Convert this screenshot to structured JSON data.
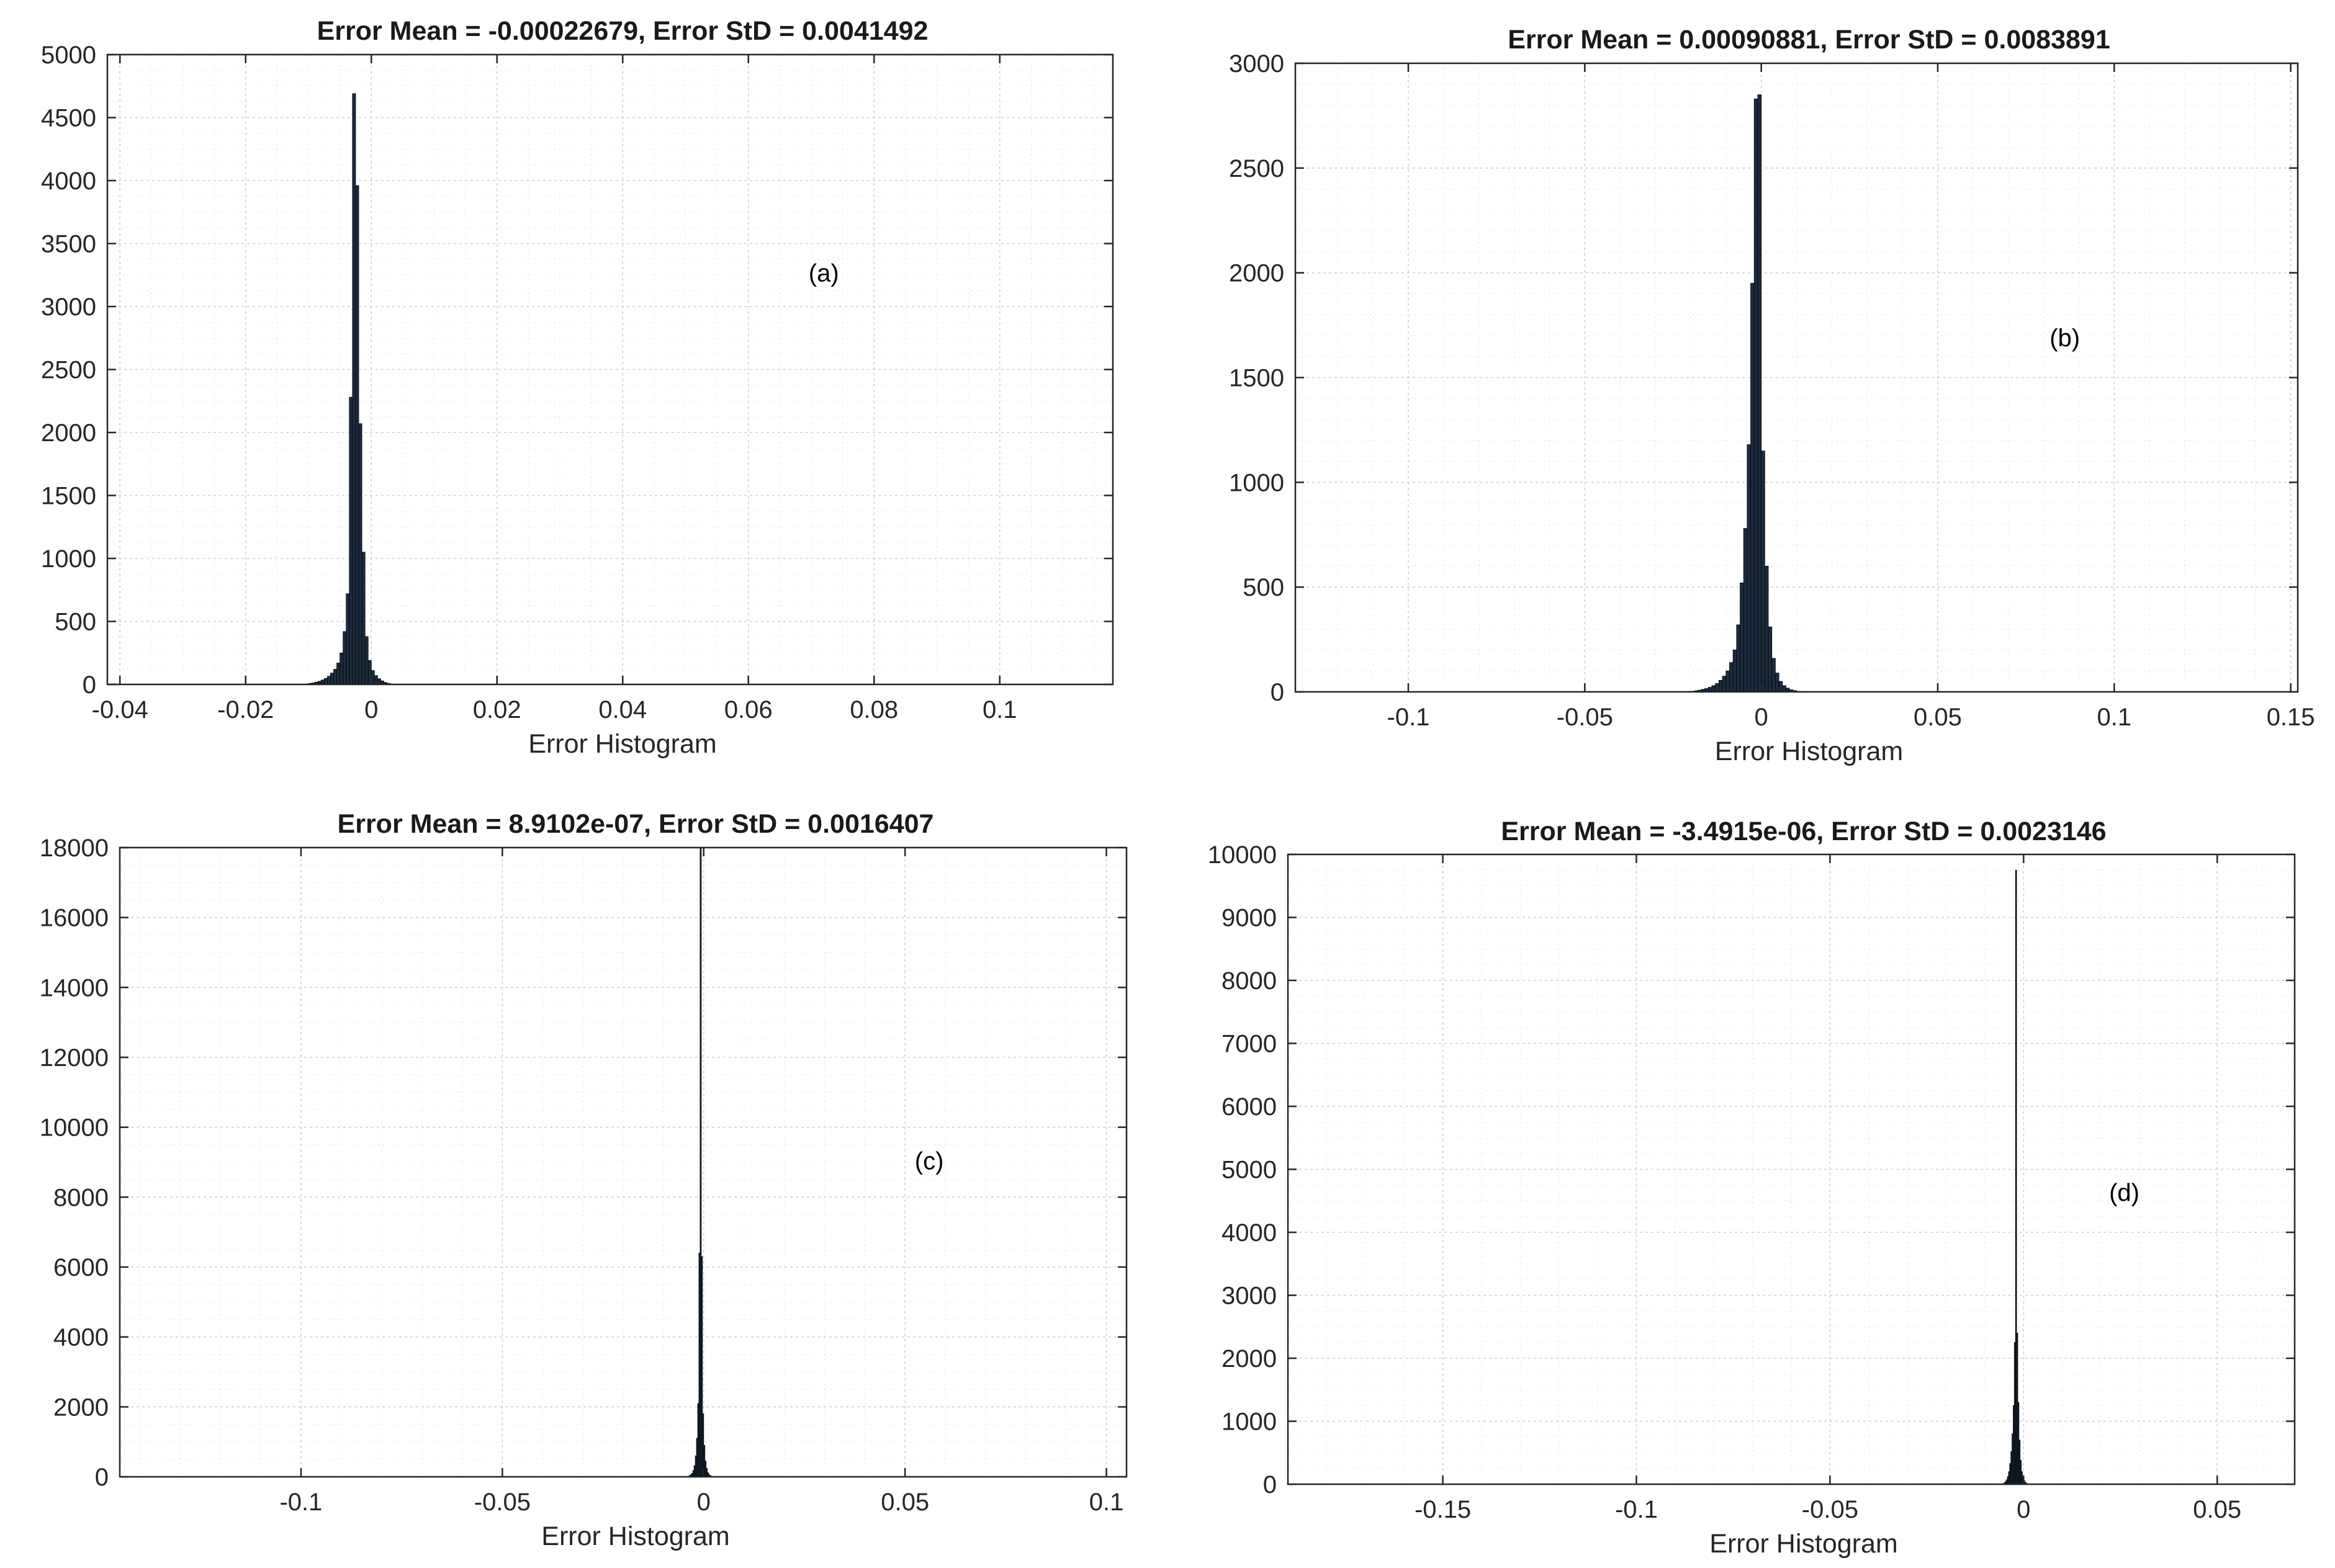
{
  "chart_data": [
    {
      "type": "bar",
      "panel": "a",
      "title": "Error Mean = -0.00022679, Error StD = 0.0041492",
      "xlabel": "Error Histogram",
      "ylabel": "",
      "annotation": "(a)",
      "annotation_at": [
        0.072,
        3200
      ],
      "xlim": [
        -0.042,
        0.118
      ],
      "ylim": [
        0,
        5000
      ],
      "xticks": [
        -0.04,
        -0.02,
        0,
        0.02,
        0.04,
        0.06,
        0.08,
        0.1
      ],
      "xtick_labels": [
        "-0.04",
        "-0.02",
        "0",
        "0.02",
        "0.04",
        "0.06",
        "0.08",
        "0.1"
      ],
      "yticks": [
        0,
        500,
        1000,
        1500,
        2000,
        2500,
        3000,
        3500,
        4000,
        4500,
        5000
      ],
      "ytick_labels": [
        "0",
        "500",
        "1000",
        "1500",
        "2000",
        "2500",
        "3000",
        "3500",
        "4000",
        "4500",
        "5000"
      ],
      "x_minor_step": 0.005,
      "y_minor_step": 125,
      "bin_width": 0.0005,
      "bin_start": -0.0115,
      "counts": [
        2,
        3,
        5,
        8,
        12,
        18,
        25,
        35,
        48,
        65,
        90,
        120,
        170,
        250,
        420,
        720,
        2280,
        4690,
        3960,
        2070,
        1050,
        380,
        190,
        110,
        70,
        45,
        28,
        15,
        8,
        4,
        2,
        1
      ]
    },
    {
      "type": "bar",
      "panel": "b",
      "title": "Error Mean = 0.00090881, Error StD = 0.0083891",
      "xlabel": "Error Histogram",
      "ylabel": "",
      "annotation": "(b)",
      "annotation_at": [
        0.086,
        1650
      ],
      "xlim": [
        -0.132,
        0.152
      ],
      "ylim": [
        0,
        3000
      ],
      "xticks": [
        -0.1,
        -0.05,
        0,
        0.05,
        0.1,
        0.15
      ],
      "xtick_labels": [
        "-0.1",
        "-0.05",
        "0",
        "0.05",
        "0.1",
        "0.15"
      ],
      "yticks": [
        0,
        500,
        1000,
        1500,
        2000,
        2500,
        3000
      ],
      "ytick_labels": [
        "0",
        "500",
        "1000",
        "1500",
        "2000",
        "2500",
        "3000"
      ],
      "x_minor_step": 0.01,
      "y_minor_step": 100,
      "bin_width": 0.001,
      "bin_start": -0.021,
      "counts": [
        2,
        3,
        5,
        8,
        12,
        16,
        22,
        30,
        40,
        55,
        75,
        100,
        140,
        200,
        320,
        520,
        780,
        1180,
        1950,
        2830,
        2850,
        1150,
        600,
        310,
        160,
        90,
        50,
        30,
        18,
        10,
        6,
        3,
        2,
        1,
        1
      ]
    },
    {
      "type": "bar",
      "panel": "c",
      "title": "Error Mean = 8.9102e-07, Error StD = 0.0016407",
      "xlabel": "Error Histogram",
      "ylabel": "",
      "annotation": "(c)",
      "annotation_at": [
        0.056,
        8800
      ],
      "xlim": [
        -0.145,
        0.105
      ],
      "ylim": [
        0,
        18000
      ],
      "xticks": [
        -0.1,
        -0.05,
        0,
        0.05,
        0.1
      ],
      "xtick_labels": [
        "-0.1",
        "-0.05",
        "0",
        "0.05",
        "0.1"
      ],
      "yticks": [
        0,
        2000,
        4000,
        6000,
        8000,
        10000,
        12000,
        14000,
        16000,
        18000
      ],
      "ytick_labels": [
        "0",
        "2000",
        "4000",
        "6000",
        "8000",
        "10000",
        "12000",
        "14000",
        "16000",
        "18000"
      ],
      "x_minor_step": 0.01,
      "y_minor_step": 500,
      "bin_width": 0.0003,
      "bin_start": -0.0045,
      "counts": [
        5,
        10,
        20,
        35,
        60,
        100,
        180,
        320,
        600,
        1100,
        2100,
        6400,
        18000,
        6300,
        1800,
        900,
        450,
        240,
        120,
        60,
        30,
        15,
        8,
        4,
        2,
        1
      ]
    },
    {
      "type": "bar",
      "panel": "d",
      "title": "Error Mean = -3.4915e-06, Error StD = 0.0023146",
      "xlabel": "Error Histogram",
      "ylabel": "",
      "annotation": "(d)",
      "annotation_at": [
        0.026,
        4500
      ],
      "xlim": [
        -0.19,
        0.07
      ],
      "ylim": [
        0,
        10000
      ],
      "xticks": [
        -0.15,
        -0.1,
        -0.05,
        0,
        0.05
      ],
      "xtick_labels": [
        "-0.15",
        "-0.1",
        "-0.05",
        "0",
        "0.05"
      ],
      "yticks": [
        0,
        1000,
        2000,
        3000,
        4000,
        5000,
        6000,
        7000,
        8000,
        9000,
        10000
      ],
      "ytick_labels": [
        "0",
        "1000",
        "2000",
        "3000",
        "4000",
        "5000",
        "6000",
        "7000",
        "8000",
        "9000",
        "10000"
      ],
      "x_minor_step": 0.01,
      "y_minor_step": 250,
      "bin_width": 0.0003,
      "bin_start": -0.006,
      "counts": [
        3,
        6,
        12,
        22,
        40,
        70,
        120,
        200,
        330,
        520,
        800,
        1250,
        2250,
        9750,
        2400,
        1300,
        700,
        380,
        200,
        110,
        60,
        32,
        16,
        8,
        4,
        2,
        1
      ]
    }
  ]
}
